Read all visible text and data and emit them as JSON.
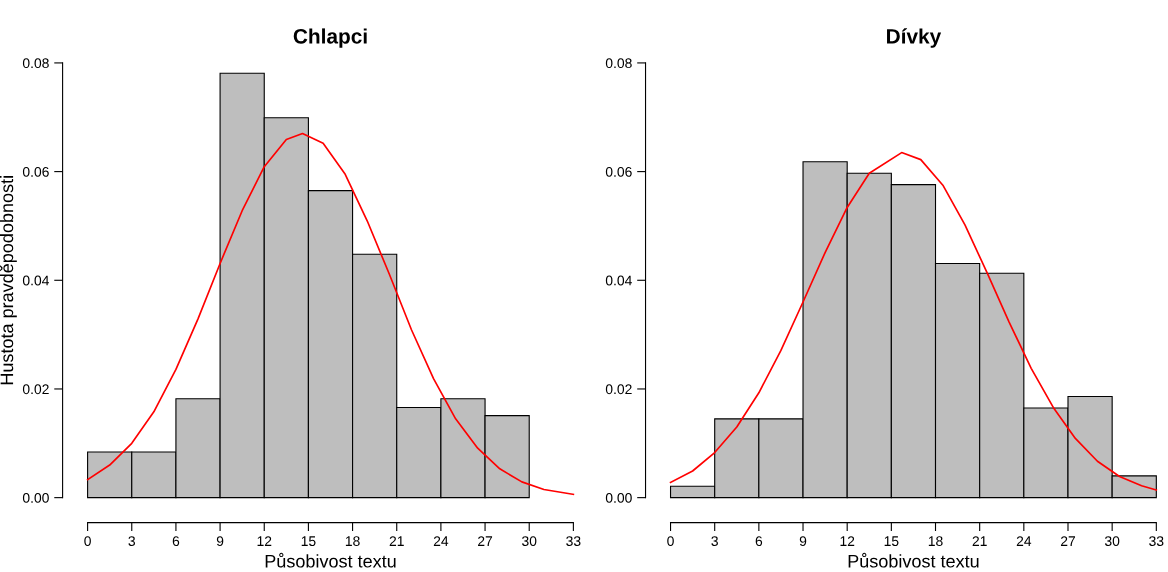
{
  "chart_data": [
    {
      "type": "histogram",
      "title": "Chlapci",
      "xlabel": "Působivost textu",
      "ylabel": "Hustota pravděpodobnosti",
      "bins": [
        0,
        3,
        6,
        9,
        12,
        15,
        18,
        21,
        24,
        27,
        30,
        33
      ],
      "values": [
        0.0084,
        0.0084,
        0.0182,
        0.0781,
        0.0699,
        0.0565,
        0.0448,
        0.0166,
        0.0182,
        0.0151,
        0
      ],
      "color": "#bebebe",
      "xlim": [
        0,
        33
      ],
      "ylim": [
        0,
        0.08
      ],
      "xticks": [
        0,
        3,
        6,
        9,
        12,
        15,
        18,
        21,
        24,
        27,
        30,
        33
      ],
      "yticks": [
        {
          "value": 0,
          "label": "0.00"
        },
        {
          "value": 0.02,
          "label": "0.02"
        },
        {
          "value": 0.04,
          "label": "0.04"
        },
        {
          "value": 0.06,
          "label": "0.06"
        },
        {
          "value": 0.08,
          "label": "0.08"
        }
      ],
      "grid": false,
      "series": [
        {
          "type": "line",
          "color": "#ff0000",
          "x": [
            0,
            1.5,
            3,
            4.5,
            6,
            7.5,
            9,
            10.5,
            12,
            13.5,
            14.6,
            16,
            17.5,
            19,
            20.5,
            22,
            23.5,
            25,
            26.5,
            28,
            29.5,
            31,
            33
          ],
          "values": [
            0.0033,
            0.006,
            0.01,
            0.0158,
            0.0236,
            0.0329,
            0.0431,
            0.0528,
            0.0609,
            0.0659,
            0.067,
            0.0652,
            0.0595,
            0.0509,
            0.0411,
            0.0309,
            0.0219,
            0.0145,
            0.0091,
            0.0053,
            0.0029,
            0.0015,
            0.0006
          ]
        }
      ]
    },
    {
      "type": "histogram",
      "title": "Dívky",
      "xlabel": "Působivost textu",
      "bins": [
        0,
        3,
        6,
        9,
        12,
        15,
        18,
        21,
        24,
        27,
        30,
        33
      ],
      "values": [
        0.0021,
        0.0145,
        0.0145,
        0.0618,
        0.0597,
        0.0576,
        0.0431,
        0.0413,
        0.0165,
        0.0186,
        0.004
      ],
      "color": "#bebebe",
      "xlim": [
        0,
        33
      ],
      "ylim": [
        0,
        0.08
      ],
      "xticks": [
        0,
        3,
        6,
        9,
        12,
        15,
        18,
        21,
        24,
        27,
        30,
        33
      ],
      "yticks": [
        {
          "value": 0,
          "label": "0.00"
        },
        {
          "value": 0.02,
          "label": "0.02"
        },
        {
          "value": 0.04,
          "label": "0.04"
        },
        {
          "value": 0.06,
          "label": "0.06"
        },
        {
          "value": 0.08,
          "label": "0.08"
        }
      ],
      "grid": false,
      "series": [
        {
          "type": "line",
          "color": "#ff0000",
          "x": [
            0,
            1.5,
            3,
            4.5,
            6,
            7.5,
            9,
            10.5,
            12,
            13.5,
            15.7,
            17,
            18.5,
            20,
            21.5,
            23,
            24.5,
            26,
            27.5,
            29,
            30.5,
            32,
            33
          ],
          "values": [
            0.0028,
            0.0049,
            0.0083,
            0.013,
            0.0193,
            0.0271,
            0.036,
            0.0451,
            0.0534,
            0.0597,
            0.0635,
            0.0622,
            0.0575,
            0.0502,
            0.0414,
            0.0323,
            0.0238,
            0.0166,
            0.0109,
            0.0067,
            0.0039,
            0.0022,
            0.0014
          ]
        }
      ]
    }
  ]
}
